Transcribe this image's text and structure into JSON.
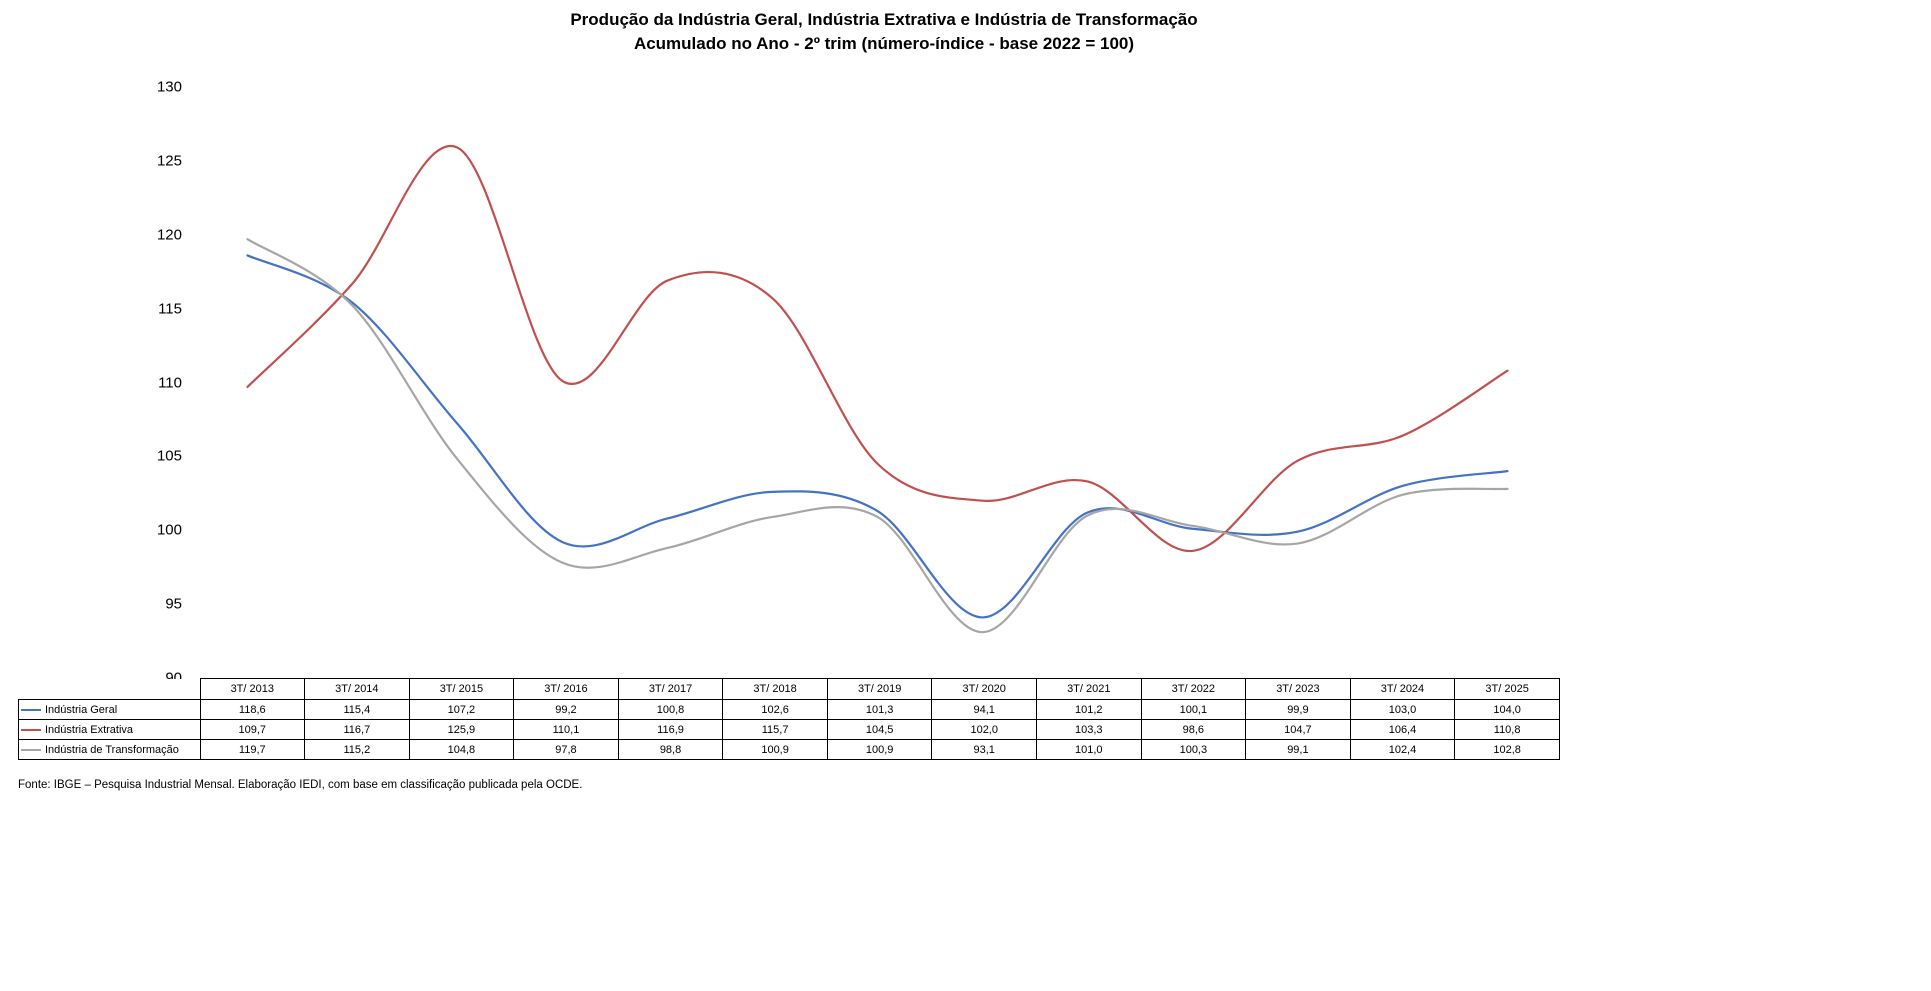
{
  "title": {
    "line1": "Produção da Indústria Geral, Indústria Extrativa e Indústria de Transformação",
    "line2": "Acumulado no Ano - 2º trim (número-índice - base 2022 = 100)"
  },
  "source_note": "Fonte: IBGE – Pesquisa Industrial Mensal. Elaboração IEDI, com base em classificação publicada pela OCDE.",
  "chart_data": {
    "type": "line",
    "title": "Produção da Indústria Geral, Indústria Extrativa e Indústria de Transformação",
    "subtitle": "Acumulado no Ano - 2º trim (número-índice - base 2022 = 100)",
    "categories": [
      "3T/ 2013",
      "3T/ 2014",
      "3T/ 2015",
      "3T/ 2016",
      "3T/ 2017",
      "3T/ 2018",
      "3T/ 2019",
      "3T/ 2020",
      "3T/ 2021",
      "3T/ 2022",
      "3T/ 2023",
      "3T/ 2024",
      "3T/ 2025"
    ],
    "series": [
      {
        "name": "Indústria Geral",
        "color": "#4472C4",
        "values": [
          118.6,
          115.4,
          107.2,
          99.2,
          100.8,
          102.6,
          101.3,
          94.1,
          101.2,
          100.1,
          99.9,
          103.0,
          104.0
        ]
      },
      {
        "name": "Indústria Extrativa",
        "color": "#C0504D",
        "values": [
          109.7,
          116.7,
          125.9,
          110.1,
          116.9,
          115.7,
          104.5,
          102.0,
          103.3,
          98.6,
          104.7,
          106.4,
          110.8
        ]
      },
      {
        "name": "Indústria de Transformação",
        "color": "#A6A6A6",
        "values": [
          119.7,
          115.2,
          104.8,
          97.8,
          98.8,
          100.9,
          100.9,
          93.1,
          101.0,
          100.3,
          99.1,
          102.4,
          102.8
        ]
      }
    ],
    "ylim": [
      90,
      130
    ],
    "yticks": [
      130,
      125,
      120,
      115,
      110,
      105,
      100,
      95,
      90
    ],
    "grid": false,
    "smooth": true,
    "legend_position": "data-table-left",
    "number_format": "comma-decimal-1"
  }
}
